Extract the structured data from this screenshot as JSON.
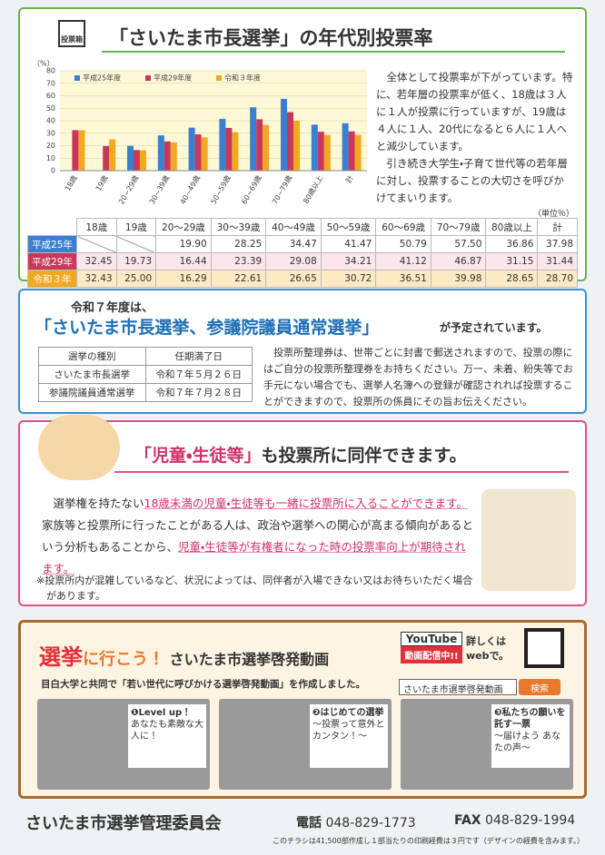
{
  "header": {
    "icon": "投票箱",
    "title": "「さいたま市長選挙」の年代別投票率"
  },
  "chart_data": {
    "type": "bar",
    "y_label": "（%）",
    "categories": [
      "18歳",
      "19歳",
      "20~29歳",
      "30~39歳",
      "40~49歳",
      "50~59歳",
      "60~69歳",
      "70~79歳",
      "80歳以上",
      "計"
    ],
    "series": [
      {
        "name": "平成25年度",
        "color": "#3a7fd0",
        "values": [
          null,
          null,
          19.9,
          28.25,
          34.47,
          41.47,
          50.79,
          57.5,
          36.86,
          37.98
        ]
      },
      {
        "name": "平成29年度",
        "color": "#c8385a",
        "values": [
          32.45,
          19.73,
          16.44,
          23.39,
          29.08,
          34.21,
          41.12,
          46.87,
          31.15,
          31.44
        ]
      },
      {
        "name": "令和３年度",
        "color": "#f2a922",
        "values": [
          32.43,
          25.0,
          16.29,
          22.61,
          26.65,
          30.72,
          36.51,
          39.98,
          28.65,
          28.7
        ]
      }
    ],
    "ylim": [
      0,
      80
    ],
    "yticks": [
      0,
      10,
      20,
      30,
      40,
      50,
      60,
      70,
      80
    ],
    "grid": true,
    "legend": "top-left"
  },
  "summary": [
    "全体として投票率が下がっています。特に、若年層の投票率が低く、18歳は３人に１人が投票に行っていますが、19歳は４人に１人、20代になると６人に１人へと減少しています。",
    "引き続き大学生・子育て世代等の若年層に対し、投票することの大切さを呼びかけてまいります。"
  ],
  "table": {
    "unit": "（単位％）",
    "columns": [
      "18歳",
      "19歳",
      "20～29歳",
      "30～39歳",
      "40～49歳",
      "50～59歳",
      "60～69歳",
      "70～79歳",
      "80歳以上",
      "計"
    ],
    "rows": [
      {
        "label": "平成25年",
        "color": "#3a7fd0",
        "bg": "#ffffff",
        "cells": [
          null,
          null,
          "19.90",
          "28.25",
          "34.47",
          "41.47",
          "50.79",
          "57.50",
          "36.86",
          "37.98"
        ]
      },
      {
        "label": "平成29年",
        "color": "#c8385a",
        "bg": "#fbe6ec",
        "cells": [
          "32.45",
          "19.73",
          "16.44",
          "23.39",
          "29.08",
          "34.21",
          "41.12",
          "46.87",
          "31.15",
          "31.44"
        ]
      },
      {
        "label": "令和３年",
        "color": "#f2a922",
        "bg": "#fde9c4",
        "cells": [
          "32.43",
          "25.00",
          "16.29",
          "22.61",
          "26.65",
          "30.72",
          "36.51",
          "39.98",
          "28.65",
          "28.70"
        ]
      }
    ]
  },
  "notice": {
    "lead": "令和７年度は、",
    "title": "「さいたま市長選挙、参議院議員通常選挙」",
    "tail": "が予定されています。",
    "table": {
      "header": [
        "選挙の種別",
        "任期満了日"
      ],
      "rows": [
        [
          "さいたま市長選挙",
          "令和７年５月２６日"
        ],
        [
          "参議院議員通常選挙",
          "令和７年７月２８日"
        ]
      ]
    },
    "text": "投票所整理券は、世帯ごとに封書で郵送されますので、投票の際にはご自分の投票所整理券をお持ちください。万一、未着、紛失等でお手元にない場合でも、選挙人名簿への登録が確認されれば投票することができますので、投票所の係員にその旨お伝えください。"
  },
  "children": {
    "title": "「児童・生徒等」",
    "tail": "も投票所に同伴できます。",
    "body": [
      {
        "text": "選挙権を持たない",
        "highlight": false
      },
      {
        "text": "18歳未満の児童・生徒等も一緒に投票所に入ることができます。",
        "highlight": true
      },
      {
        "text": "家族等と投票所に行ったことがある人は、政治や選挙への関心が高まる傾向があるという分析もあることから、",
        "highlight": false
      },
      {
        "text": "児童・生徒等が有権者になった時の投票率向上が期待されます。",
        "highlight": true
      }
    ],
    "note": "※投票所内が混雑しているなど、状況によっては、同伴者が入場できない又はお待ちいただく場合があります。"
  },
  "video": {
    "title_em": "選挙",
    "title_rest": "に行こう！",
    "title_name": "さいたま市選挙啓発動画",
    "youtube": "YouTube",
    "youtube_sub": "動画配信中!!",
    "web": "詳しくはwebで。",
    "desc": "目白大学と共同で「若い世代に呼びかける選挙啓発動画」を作成しました。",
    "search": "さいたま市選挙啓発動画",
    "search_button": "検索",
    "cards": [
      {
        "num": "❶",
        "title": "Level up！",
        "sub": "あなたも素敵な大人に！"
      },
      {
        "num": "❷",
        "title": "はじめての選挙",
        "sub": "～投票って意外とカンタン！～"
      },
      {
        "num": "❸",
        "title": "私たちの願いを託す一票",
        "sub": "～届けよう あなたの声～"
      }
    ]
  },
  "footer": {
    "org": "さいたま市選挙管理委員会",
    "tel_label": "電話",
    "tel": "048-829-1773",
    "fax_label": "FAX",
    "fax": "048-829-1994",
    "note": "このチラシは41,500部作成し１部当たりの印刷経費は３円です（デザインの経費を含みます。）"
  }
}
